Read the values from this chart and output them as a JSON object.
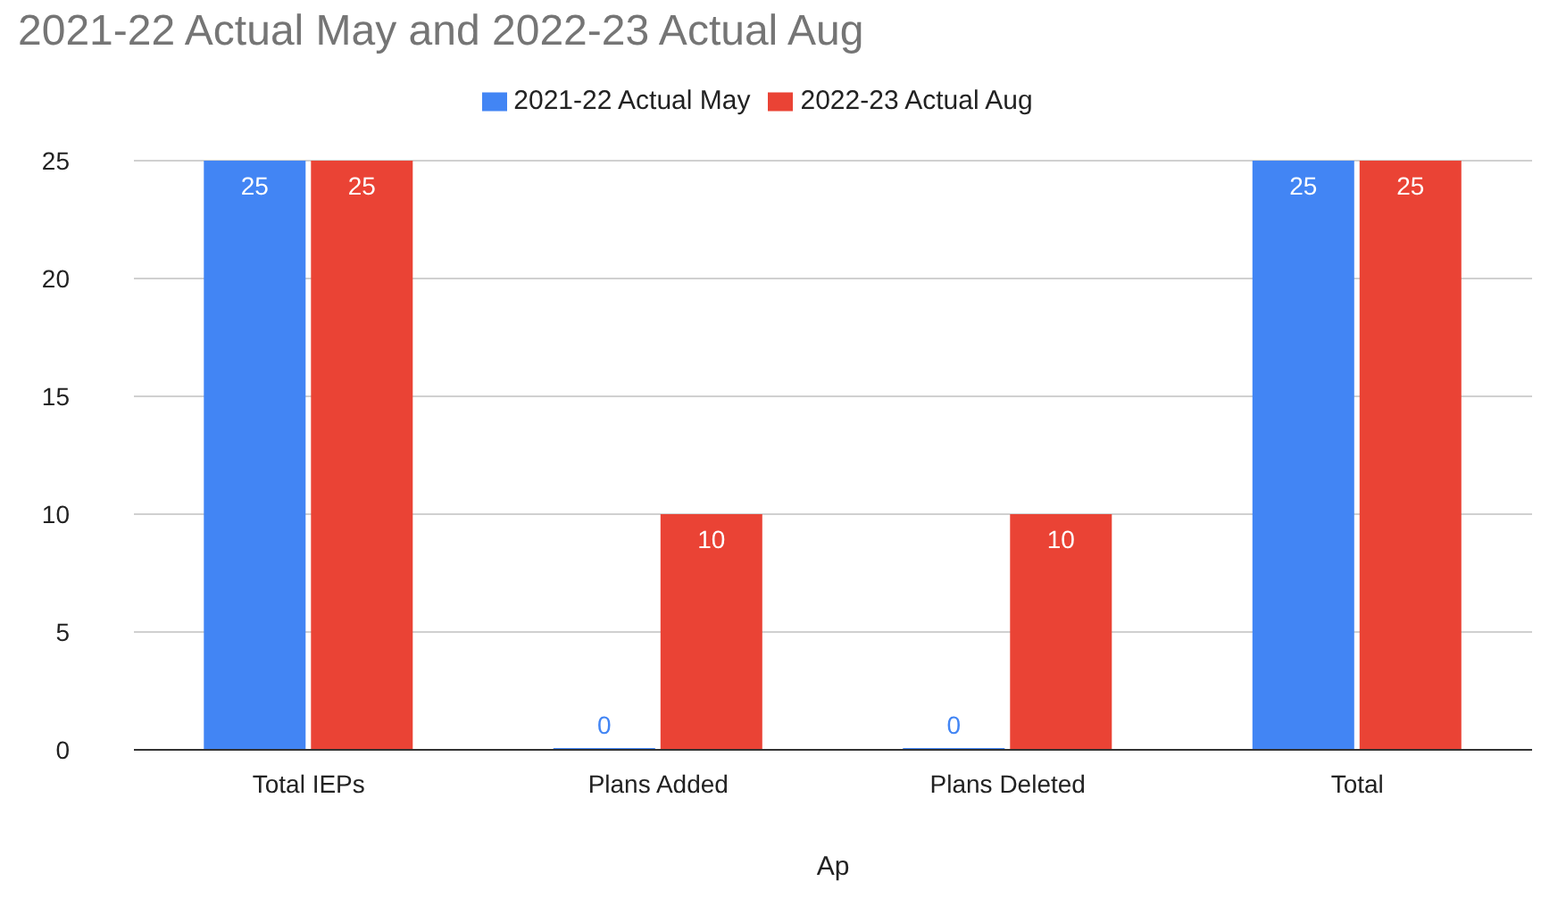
{
  "chart_data": {
    "type": "bar",
    "title": "2021-22 Actual May and 2022-23 Actual Aug",
    "xlabel": "Ap",
    "categories": [
      "Total IEPs",
      "Plans Added",
      "Plans Deleted",
      "Total"
    ],
    "series": [
      {
        "name": "2021-22 Actual May",
        "color": "#4285f4",
        "values": [
          25,
          0,
          0,
          25
        ]
      },
      {
        "name": "2022-23 Actual Aug",
        "color": "#ea4335",
        "values": [
          25,
          10,
          10,
          25
        ]
      }
    ],
    "ylim": [
      0,
      25
    ],
    "yticks": [
      0,
      5,
      10,
      15,
      20,
      25
    ],
    "grid": "y",
    "legend": "top",
    "data_labels": true
  }
}
